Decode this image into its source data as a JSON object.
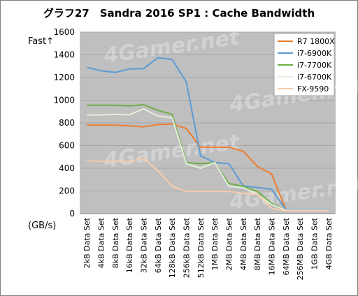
{
  "chart_data": {
    "type": "line",
    "title": "グラフ27　Sandra 2016 SP1 : Cache Bandwidth",
    "ylabel": "(GB/s)",
    "direction_label": "Fast↑",
    "ylim": [
      0,
      1600
    ],
    "yticks": [
      0,
      200,
      400,
      600,
      800,
      1000,
      1200,
      1400,
      1600
    ],
    "grid": true,
    "legend_position": "top-right",
    "categories": [
      "2kB Data Set",
      "4kB Data Set",
      "8kB Data Set",
      "16kB Data Set",
      "32kB Data Set",
      "64kB Data Set",
      "128kB Data Set",
      "256kB Data Set",
      "512kB Data Set",
      "1MB Data Set",
      "2MB Data Set",
      "4MB Data Set",
      "8MB Data Set",
      "16MB Data Set",
      "64MB Data Set",
      "256MB Data Set",
      "1GB Data Set",
      "4GB Data Set"
    ],
    "watermark": "4Gamer.net",
    "series": [
      {
        "name": "R7 1800X",
        "color": "#ed7d31",
        "values": [
          780,
          780,
          780,
          775,
          765,
          785,
          790,
          750,
          585,
          585,
          585,
          550,
          415,
          350,
          35,
          30,
          30,
          30
        ]
      },
      {
        "name": "i7-6900K",
        "color": "#5b9bd5",
        "values": [
          1290,
          1260,
          1245,
          1275,
          1278,
          1375,
          1360,
          1160,
          510,
          450,
          440,
          245,
          230,
          215,
          35,
          35,
          35,
          35
        ]
      },
      {
        "name": "i7-7700K",
        "color": "#70ad47",
        "values": [
          955,
          955,
          955,
          950,
          960,
          910,
          875,
          450,
          440,
          450,
          265,
          240,
          195,
          90,
          30,
          30,
          30,
          30
        ]
      },
      {
        "name": "i7-6700K",
        "color": "#e2efda",
        "values": [
          870,
          870,
          875,
          870,
          925,
          860,
          845,
          440,
          400,
          450,
          240,
          230,
          170,
          80,
          30,
          30,
          30,
          30
        ]
      },
      {
        "name": "FX-9590",
        "color": "#f8cbad",
        "values": [
          465,
          462,
          460,
          460,
          485,
          380,
          240,
          195,
          195,
          195,
          195,
          180,
          170,
          45,
          25,
          25,
          25,
          25
        ]
      }
    ]
  }
}
